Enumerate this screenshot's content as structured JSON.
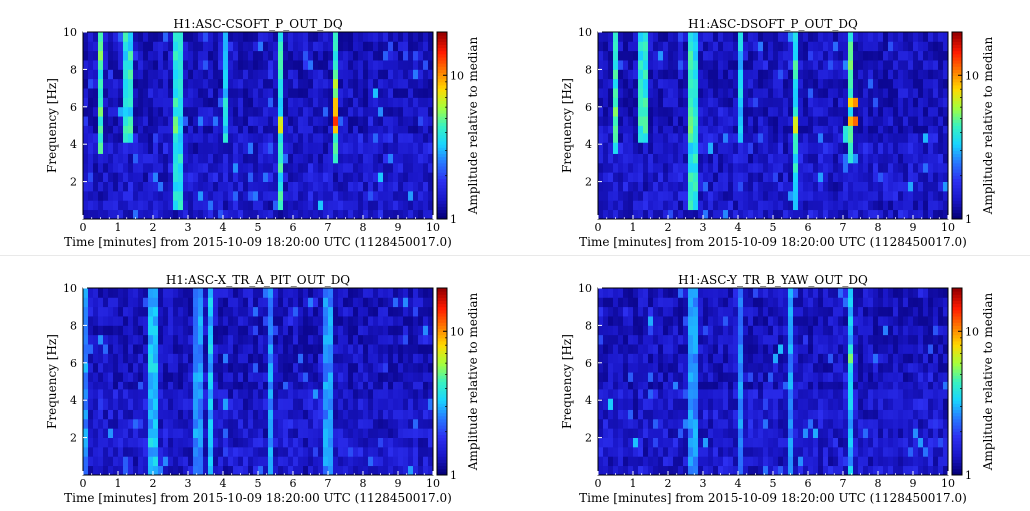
{
  "colors": {
    "background": "#00008b",
    "colormap": [
      "#06007a",
      "#1a17c9",
      "#2c2ff0",
      "#2878ff",
      "#19d5ff",
      "#39f2c0",
      "#a7ff3a",
      "#ffd800",
      "#ff7a00",
      "#ff1a00",
      "#9a0000"
    ]
  },
  "common": {
    "xlabel": "Time [minutes] from 2015-10-09 18:20:00 UTC (1128450017.0)",
    "ylabel": "Frequency [Hz]",
    "colorbar_label": "Amplitude relative to median"
  },
  "chart_data": [
    {
      "type": "heatmap",
      "title": "H1:ASC-CSOFT_P_OUT_DQ",
      "xlim": [
        0,
        10
      ],
      "ylim": [
        0,
        10
      ],
      "xticks": [
        "0",
        "1",
        "2",
        "3",
        "4",
        "5",
        "6",
        "7",
        "8",
        "9",
        "10"
      ],
      "yticks": [
        "2",
        "4",
        "6",
        "8",
        "10"
      ],
      "colorbar": {
        "scale": "log",
        "range": [
          1,
          20
        ],
        "ticks": [
          "1",
          "10"
        ]
      },
      "seed": 11,
      "lines": [
        {
          "t": 0.45,
          "f0": 3.8,
          "f1": 10,
          "level": 0.55
        },
        {
          "t": 1.3,
          "f0": 4.2,
          "f1": 10,
          "level": 0.5
        },
        {
          "t": 2.7,
          "f0": 0.5,
          "f1": 10,
          "level": 0.5
        },
        {
          "t": 4.1,
          "f0": 4.3,
          "f1": 10,
          "level": 0.45
        },
        {
          "t": 5.65,
          "f0": 0.5,
          "f1": 10,
          "level": 0.5
        },
        {
          "t": 7.25,
          "f0": 3.0,
          "f1": 10,
          "level": 0.55
        }
      ],
      "blobs": [
        {
          "t": 0.45,
          "f": 5.0,
          "level": 0.6
        },
        {
          "t": 1.3,
          "f": 5.0,
          "level": 0.7
        },
        {
          "t": 2.7,
          "f": 5.0,
          "level": 0.75
        },
        {
          "t": 5.65,
          "f": 5.0,
          "level": 0.75
        },
        {
          "t": 7.25,
          "f": 6.0,
          "level": 0.92
        },
        {
          "t": 7.25,
          "f": 5.2,
          "level": 1.0
        },
        {
          "t": 7.25,
          "f": 7.3,
          "level": 0.72
        }
      ]
    },
    {
      "type": "heatmap",
      "title": "H1:ASC-DSOFT_P_OUT_DQ",
      "xlim": [
        0,
        10
      ],
      "ylim": [
        0,
        10
      ],
      "xticks": [
        "0",
        "1",
        "2",
        "3",
        "4",
        "5",
        "6",
        "7",
        "8",
        "9",
        "10"
      ],
      "yticks": [
        "2",
        "4",
        "6",
        "8",
        "10"
      ],
      "colorbar": {
        "scale": "log",
        "range": [
          1,
          20
        ],
        "ticks": [
          "1",
          "10"
        ]
      },
      "seed": 23,
      "lines": [
        {
          "t": 0.45,
          "f0": 3.8,
          "f1": 10,
          "level": 0.55
        },
        {
          "t": 1.3,
          "f0": 4.2,
          "f1": 10,
          "level": 0.5
        },
        {
          "t": 2.7,
          "f0": 0.5,
          "f1": 10,
          "level": 0.5
        },
        {
          "t": 4.1,
          "f0": 4.3,
          "f1": 10,
          "level": 0.45
        },
        {
          "t": 5.65,
          "f0": 0.5,
          "f1": 10,
          "level": 0.5
        },
        {
          "t": 7.2,
          "f0": 3.0,
          "f1": 10,
          "level": 0.55
        }
      ],
      "blobs": [
        {
          "t": 0.45,
          "f": 5.0,
          "level": 0.6
        },
        {
          "t": 1.3,
          "f": 5.0,
          "level": 0.7
        },
        {
          "t": 2.7,
          "f": 5.0,
          "level": 0.75
        },
        {
          "t": 5.65,
          "f": 5.0,
          "level": 0.75
        },
        {
          "t": 7.3,
          "f": 6.2,
          "level": 0.95
        },
        {
          "t": 7.3,
          "f": 5.2,
          "level": 1.0
        },
        {
          "t": 7.1,
          "f": 4.6,
          "level": 0.55
        }
      ]
    },
    {
      "type": "heatmap",
      "title": "H1:ASC-X_TR_A_PIT_OUT_DQ",
      "xlim": [
        0,
        10
      ],
      "ylim": [
        0,
        10
      ],
      "xticks": [
        "0",
        "1",
        "2",
        "3",
        "4",
        "5",
        "6",
        "7",
        "8",
        "9",
        "10"
      ],
      "yticks": [
        "2",
        "4",
        "6",
        "8",
        "10"
      ],
      "colorbar": {
        "scale": "log",
        "range": [
          1,
          20
        ],
        "ticks": [
          "1",
          "10"
        ]
      },
      "seed": 37,
      "lines": [
        {
          "t": 0.1,
          "f0": 0,
          "f1": 10,
          "level": 0.36
        },
        {
          "t": 2.0,
          "f0": 0,
          "f1": 10,
          "level": 0.42
        },
        {
          "t": 3.3,
          "f0": 0,
          "f1": 10,
          "level": 0.36
        },
        {
          "t": 3.6,
          "f0": 0,
          "f1": 10,
          "level": 0.42
        },
        {
          "t": 5.4,
          "f0": 0,
          "f1": 10,
          "level": 0.36
        },
        {
          "t": 7.0,
          "f0": 0,
          "f1": 10,
          "level": 0.36
        }
      ],
      "blobs": []
    },
    {
      "type": "heatmap",
      "title": "H1:ASC-Y_TR_B_YAW_OUT_DQ",
      "xlim": [
        0,
        10
      ],
      "ylim": [
        0,
        10
      ],
      "xticks": [
        "0",
        "1",
        "2",
        "3",
        "4",
        "5",
        "6",
        "7",
        "8",
        "9",
        "10"
      ],
      "yticks": [
        "2",
        "4",
        "6",
        "8",
        "10"
      ],
      "colorbar": {
        "scale": "log",
        "range": [
          1,
          20
        ],
        "ticks": [
          "1",
          "10"
        ]
      },
      "seed": 51,
      "lines": [
        {
          "t": 2.7,
          "f0": 0,
          "f1": 10,
          "level": 0.36
        },
        {
          "t": 4.1,
          "f0": 0,
          "f1": 10,
          "level": 0.36
        },
        {
          "t": 5.5,
          "f0": 0,
          "f1": 10,
          "level": 0.36
        },
        {
          "t": 7.2,
          "f0": 0,
          "f1": 10,
          "level": 0.4
        }
      ],
      "blobs": [
        {
          "t": 7.2,
          "f": 6.3,
          "level": 0.6
        },
        {
          "t": 2.7,
          "f": 5.3,
          "level": 0.45
        }
      ]
    }
  ]
}
